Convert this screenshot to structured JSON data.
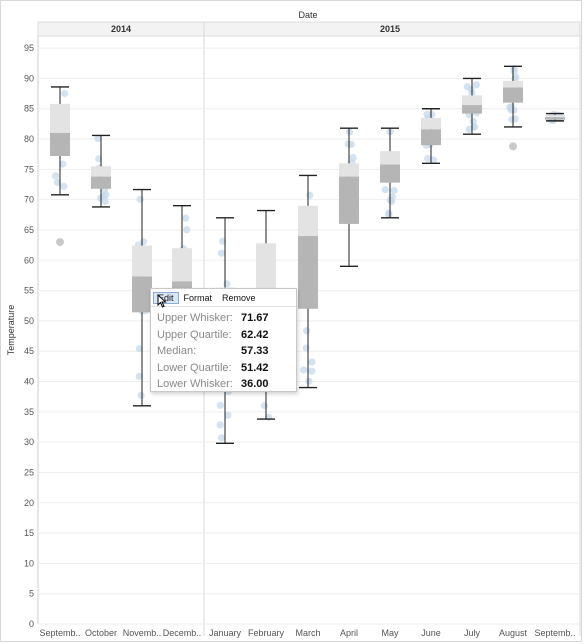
{
  "header": {
    "date_label": "Date",
    "years": [
      "2014",
      "2015"
    ]
  },
  "colors": {
    "box_upper": "#e3e3e3",
    "box_lower": "#b5b5b5",
    "dots": "#c5d9ec",
    "whisker": "#222222",
    "grid": "#eeeeee"
  },
  "chart_data": {
    "type": "box",
    "xlabel": "",
    "ylabel": "Temperature",
    "ylim": [
      0,
      97
    ],
    "yticks": [
      0,
      5,
      10,
      15,
      20,
      25,
      30,
      35,
      40,
      45,
      50,
      55,
      60,
      65,
      70,
      75,
      80,
      85,
      90,
      95
    ],
    "groups": [
      {
        "name": "2014",
        "categories": [
          "Septemb..",
          "October",
          "Novemb..",
          "Decemb.."
        ]
      },
      {
        "name": "2015",
        "categories": [
          "January",
          "February",
          "March",
          "April",
          "May",
          "June",
          "July",
          "August",
          "Septemb.."
        ]
      }
    ],
    "categories": [
      "Septemb..",
      "October",
      "Novemb..",
      "Decemb..",
      "January",
      "February",
      "March",
      "April",
      "May",
      "June",
      "July",
      "August",
      "Septemb.."
    ],
    "boxes": [
      {
        "lower_whisker": 70.8,
        "lower_quartile": 77.2,
        "median": 81.0,
        "upper_quartile": 85.8,
        "upper_whisker": 88.6,
        "outliers": [
          63.0
        ]
      },
      {
        "lower_whisker": 68.8,
        "lower_quartile": 71.8,
        "median": 73.8,
        "upper_quartile": 75.5,
        "upper_whisker": 80.6,
        "outliers": []
      },
      {
        "lower_whisker": 36.0,
        "lower_quartile": 51.42,
        "median": 57.33,
        "upper_quartile": 62.42,
        "upper_whisker": 71.67,
        "outliers": []
      },
      {
        "lower_whisker": 41.0,
        "lower_quartile": 52.0,
        "median": 56.5,
        "upper_quartile": 62.0,
        "upper_whisker": 69.0,
        "outliers": []
      },
      {
        "lower_whisker": 29.8,
        "lower_quartile": 42.0,
        "median": 50.0,
        "upper_quartile": 55.5,
        "upper_whisker": 67.0,
        "outliers": []
      },
      {
        "lower_whisker": 33.8,
        "lower_quartile": 44.0,
        "median": 52.0,
        "upper_quartile": 62.8,
        "upper_whisker": 68.2,
        "outliers": []
      },
      {
        "lower_whisker": 39.0,
        "lower_quartile": 52.0,
        "median": 64.0,
        "upper_quartile": 69.0,
        "upper_whisker": 74.0,
        "outliers": []
      },
      {
        "lower_whisker": 59.0,
        "lower_quartile": 66.0,
        "median": 73.8,
        "upper_quartile": 76.0,
        "upper_whisker": 81.8,
        "outliers": []
      },
      {
        "lower_whisker": 67.0,
        "lower_quartile": 72.8,
        "median": 75.8,
        "upper_quartile": 78.0,
        "upper_whisker": 81.8,
        "outliers": []
      },
      {
        "lower_whisker": 76.0,
        "lower_quartile": 79.0,
        "median": 81.6,
        "upper_quartile": 83.5,
        "upper_whisker": 85.0,
        "outliers": []
      },
      {
        "lower_whisker": 80.8,
        "lower_quartile": 84.2,
        "median": 85.6,
        "upper_quartile": 87.2,
        "upper_whisker": 90.0,
        "outliers": []
      },
      {
        "lower_whisker": 82.0,
        "lower_quartile": 86.0,
        "median": 88.5,
        "upper_quartile": 89.6,
        "upper_whisker": 92.0,
        "outliers": [
          78.8
        ]
      },
      {
        "lower_whisker": 83.0,
        "lower_quartile": 83.2,
        "median": 83.6,
        "upper_quartile": 84.0,
        "upper_whisker": 84.2,
        "outliers": []
      }
    ],
    "grid": true
  },
  "tooltip": {
    "menu": [
      "Edit",
      "Format",
      "Remove"
    ],
    "rows": [
      {
        "label": "Upper Whisker:",
        "value": "71.67"
      },
      {
        "label": "Upper Quartile:",
        "value": "62.42"
      },
      {
        "label": "Median:",
        "value": "57.33"
      },
      {
        "label": "Lower Quartile:",
        "value": "51.42"
      },
      {
        "label": "Lower Whisker:",
        "value": "36.00"
      }
    ]
  }
}
